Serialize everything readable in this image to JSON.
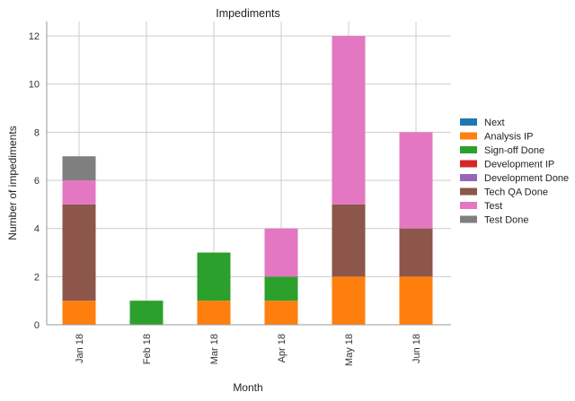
{
  "chart_data": {
    "type": "bar",
    "stacked": true,
    "title": "Impediments",
    "xlabel": "Month",
    "ylabel": "Number of impediments",
    "ylim": [
      0,
      12.6
    ],
    "yticks": [
      "0",
      "2",
      "4",
      "6",
      "8",
      "10",
      "12"
    ],
    "ytick_values": [
      0,
      2,
      4,
      6,
      8,
      10,
      12
    ],
    "categories": [
      "Jan 18",
      "Feb 18",
      "Mar 18",
      "Apr 18",
      "May 18",
      "Jun 18"
    ],
    "grid": true,
    "legend_position": "right",
    "series": [
      {
        "name": "Next",
        "color": "#1f77b4",
        "values": [
          0,
          0,
          0,
          0,
          0,
          0
        ]
      },
      {
        "name": "Analysis IP",
        "color": "#ff7f0e",
        "values": [
          1,
          0,
          1,
          1,
          2,
          2
        ]
      },
      {
        "name": "Sign-off Done",
        "color": "#2ca02c",
        "values": [
          0,
          1,
          2,
          1,
          0,
          0
        ]
      },
      {
        "name": "Development IP",
        "color": "#d62728",
        "values": [
          0,
          0,
          0,
          0,
          0,
          0
        ]
      },
      {
        "name": "Development Done",
        "color": "#9467bd",
        "values": [
          0,
          0,
          0,
          0,
          0,
          0
        ]
      },
      {
        "name": "Tech QA Done",
        "color": "#8c564b",
        "values": [
          4,
          0,
          0,
          0,
          3,
          2
        ]
      },
      {
        "name": "Test",
        "color": "#e377c2",
        "values": [
          1,
          0,
          0,
          2,
          7,
          4
        ]
      },
      {
        "name": "Test Done",
        "color": "#7f7f7f",
        "values": [
          1,
          0,
          0,
          0,
          0,
          0
        ]
      }
    ]
  }
}
